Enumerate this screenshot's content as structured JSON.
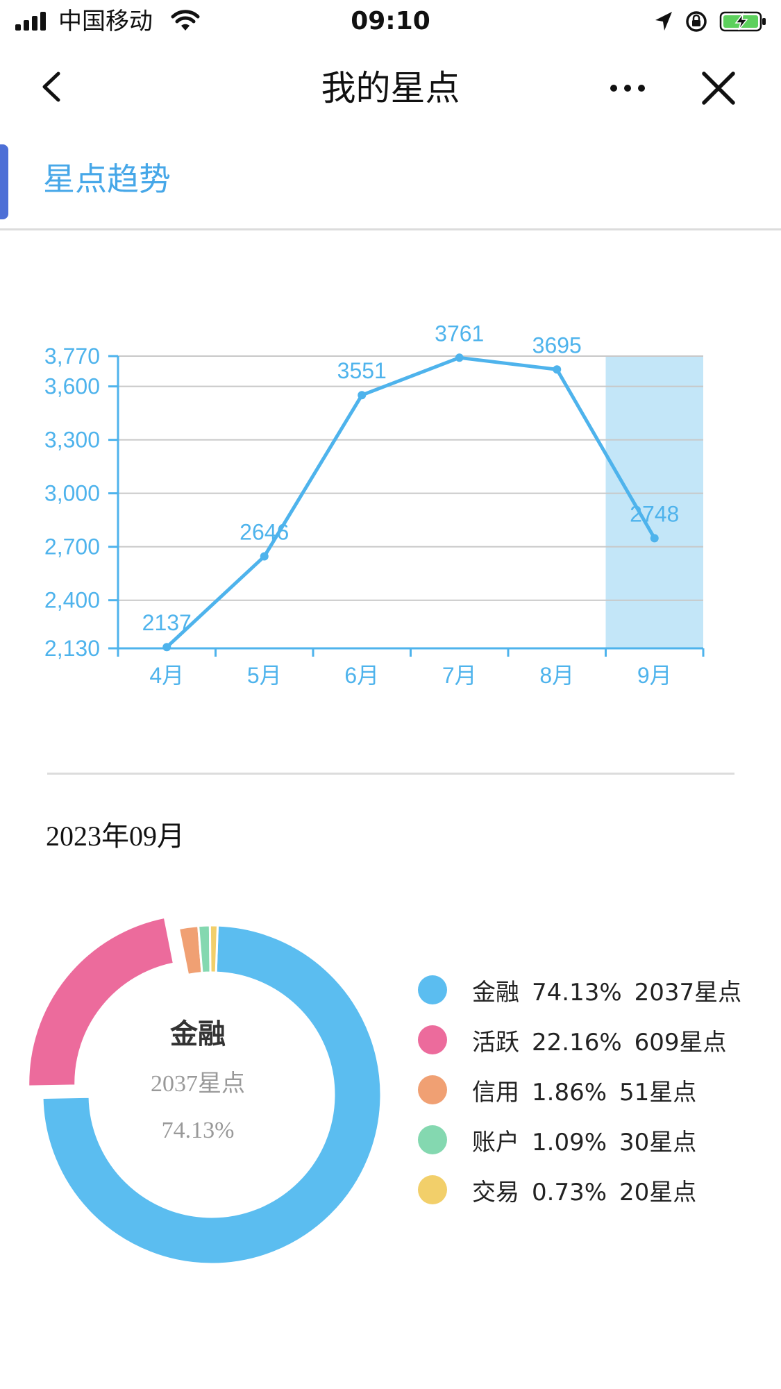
{
  "status_bar": {
    "carrier": "中国移动",
    "time": "09:10"
  },
  "nav": {
    "title": "我的星点"
  },
  "section": {
    "title": "星点趋势"
  },
  "period": {
    "label": "2023年09月"
  },
  "chart_data": [
    {
      "type": "line",
      "categories": [
        "4月",
        "5月",
        "6月",
        "7月",
        "8月",
        "9月"
      ],
      "series": [
        {
          "values": [
            2137,
            2646,
            3551,
            3761,
            3695,
            2748
          ]
        }
      ],
      "y_ticks": [
        "2,130",
        "2,400",
        "2,700",
        "3,000",
        "3,300",
        "3,600",
        "3,770"
      ],
      "y_tick_values": [
        2130,
        2400,
        2700,
        3000,
        3300,
        3600,
        3770
      ],
      "ylim": [
        2130,
        3770
      ],
      "highlight_category": "9月",
      "grid": true,
      "color": "#4eb3ec",
      "highlight_color": "#c3e6f8"
    },
    {
      "type": "pie",
      "style": "donut",
      "center_label": {
        "name": "金融",
        "points": "2037星点",
        "percent": "74.13%"
      },
      "slices": [
        {
          "name": "金融",
          "percent": "74.13%",
          "points": "2037星点",
          "value": 2037,
          "color": "#5bbdf0"
        },
        {
          "name": "活跃",
          "percent": "22.16%",
          "points": "609星点",
          "value": 609,
          "color": "#ec6b9c"
        },
        {
          "name": "信用",
          "percent": "1.86%",
          "points": "51星点",
          "value": 51,
          "color": "#f0a073"
        },
        {
          "name": "账户",
          "percent": "1.09%",
          "points": "30星点",
          "value": 30,
          "color": "#84d8b0"
        },
        {
          "name": "交易",
          "percent": "0.73%",
          "points": "20星点",
          "value": 20,
          "color": "#f2cf6a"
        }
      ],
      "exploded": "活跃"
    }
  ]
}
